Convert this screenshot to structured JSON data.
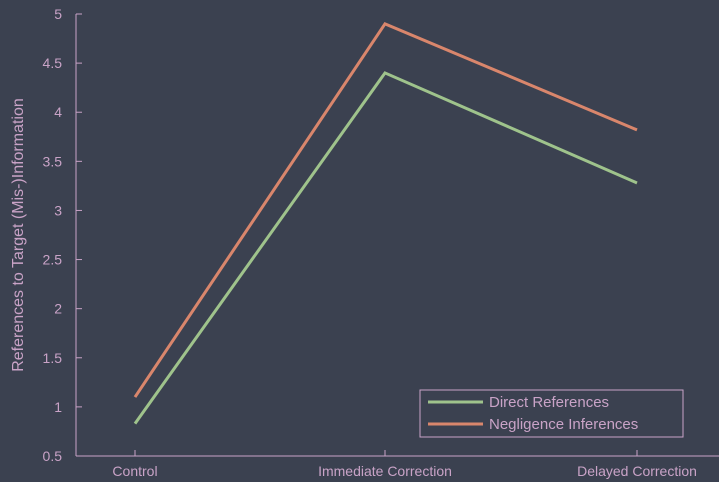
{
  "chart_data": {
    "type": "line",
    "categories": [
      "Control",
      "Immediate Correction",
      "Delayed Correction"
    ],
    "series": [
      {
        "name": "Direct References",
        "values": [
          0.83,
          4.4,
          3.28
        ],
        "color": "#9fc38c"
      },
      {
        "name": "Negligence Inferences",
        "values": [
          1.1,
          4.9,
          3.82
        ],
        "color": "#d9866c"
      }
    ],
    "ylabel": "References to Target (Mis-)Information",
    "ylim": [
      0.5,
      5
    ],
    "yticks": [
      0.5,
      1,
      1.5,
      2,
      2.5,
      3,
      3.5,
      4,
      4.5,
      5
    ],
    "ytick_labels": [
      "0.5",
      "1",
      "1.5",
      "2",
      "2.5",
      "3",
      "3.5",
      "4",
      "4.5",
      "5"
    ],
    "grid": false,
    "legend_position": "bottom-right",
    "background": "#3b4150",
    "axis_color": "#c9a3c7"
  }
}
